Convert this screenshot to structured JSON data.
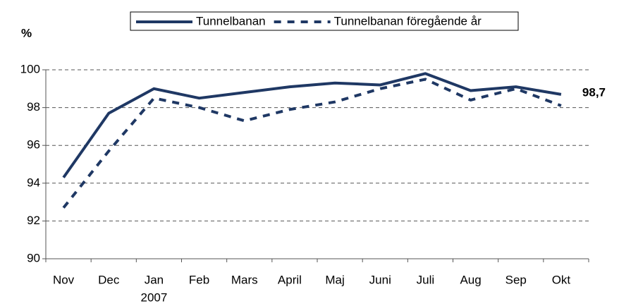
{
  "chart_data": {
    "type": "line",
    "y_label": "%",
    "categories": [
      "Nov",
      "Dec",
      "Jan",
      "Feb",
      "Mars",
      "April",
      "Maj",
      "Juni",
      "Juli",
      "Aug",
      "Sep",
      "Okt"
    ],
    "year_annotation": "2007",
    "series": [
      {
        "name": "Tunnelbanan",
        "color": "#1f3864",
        "style": "solid",
        "values": [
          94.3,
          97.7,
          99.0,
          98.5,
          98.8,
          99.1,
          99.3,
          99.2,
          99.8,
          98.9,
          99.1,
          98.7
        ],
        "value_labels": [
          null,
          null,
          null,
          null,
          null,
          null,
          null,
          null,
          null,
          null,
          null,
          "98,7"
        ]
      },
      {
        "name": "Tunnelbanan föregående år",
        "color": "#1f3864",
        "style": "dashed",
        "values": [
          92.7,
          95.7,
          98.5,
          98.0,
          97.3,
          97.9,
          98.3,
          99.0,
          99.5,
          98.4,
          99.0,
          98.1
        ]
      }
    ],
    "ylim": [
      90,
      100
    ],
    "yticks": [
      90,
      92,
      94,
      96,
      98,
      100
    ],
    "grid": true,
    "legend": "top"
  }
}
